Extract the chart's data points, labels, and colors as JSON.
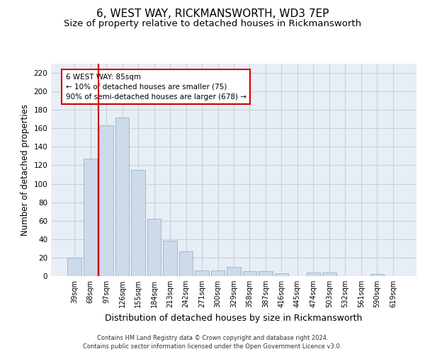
{
  "title": "6, WEST WAY, RICKMANSWORTH, WD3 7EP",
  "subtitle": "Size of property relative to detached houses in Rickmansworth",
  "xlabel": "Distribution of detached houses by size in Rickmansworth",
  "ylabel": "Number of detached properties",
  "categories": [
    "39sqm",
    "68sqm",
    "97sqm",
    "126sqm",
    "155sqm",
    "184sqm",
    "213sqm",
    "242sqm",
    "271sqm",
    "300sqm",
    "329sqm",
    "358sqm",
    "387sqm",
    "416sqm",
    "445sqm",
    "474sqm",
    "503sqm",
    "532sqm",
    "561sqm",
    "590sqm",
    "619sqm"
  ],
  "values": [
    20,
    127,
    163,
    172,
    115,
    62,
    38,
    27,
    6,
    6,
    10,
    5,
    5,
    3,
    0,
    4,
    4,
    0,
    0,
    2,
    0
  ],
  "bar_color": "#ccdaeb",
  "bar_edgecolor": "#9ab4cc",
  "ylim": [
    0,
    230
  ],
  "yticks": [
    0,
    20,
    40,
    60,
    80,
    100,
    120,
    140,
    160,
    180,
    200,
    220
  ],
  "vline_color": "#cc0000",
  "annotation_text": "6 WEST WAY: 85sqm\n← 10% of detached houses are smaller (75)\n90% of semi-detached houses are larger (678) →",
  "annotation_box_edgecolor": "#cc0000",
  "annotation_box_facecolor": "#ffffff",
  "footer1": "Contains HM Land Registry data © Crown copyright and database right 2024.",
  "footer2": "Contains public sector information licensed under the Open Government Licence v3.0.",
  "background_color": "#e8eef5",
  "grid_color": "#c8d0da",
  "title_fontsize": 11,
  "subtitle_fontsize": 9.5,
  "tick_fontsize": 7,
  "ylabel_fontsize": 8.5,
  "xlabel_fontsize": 9
}
